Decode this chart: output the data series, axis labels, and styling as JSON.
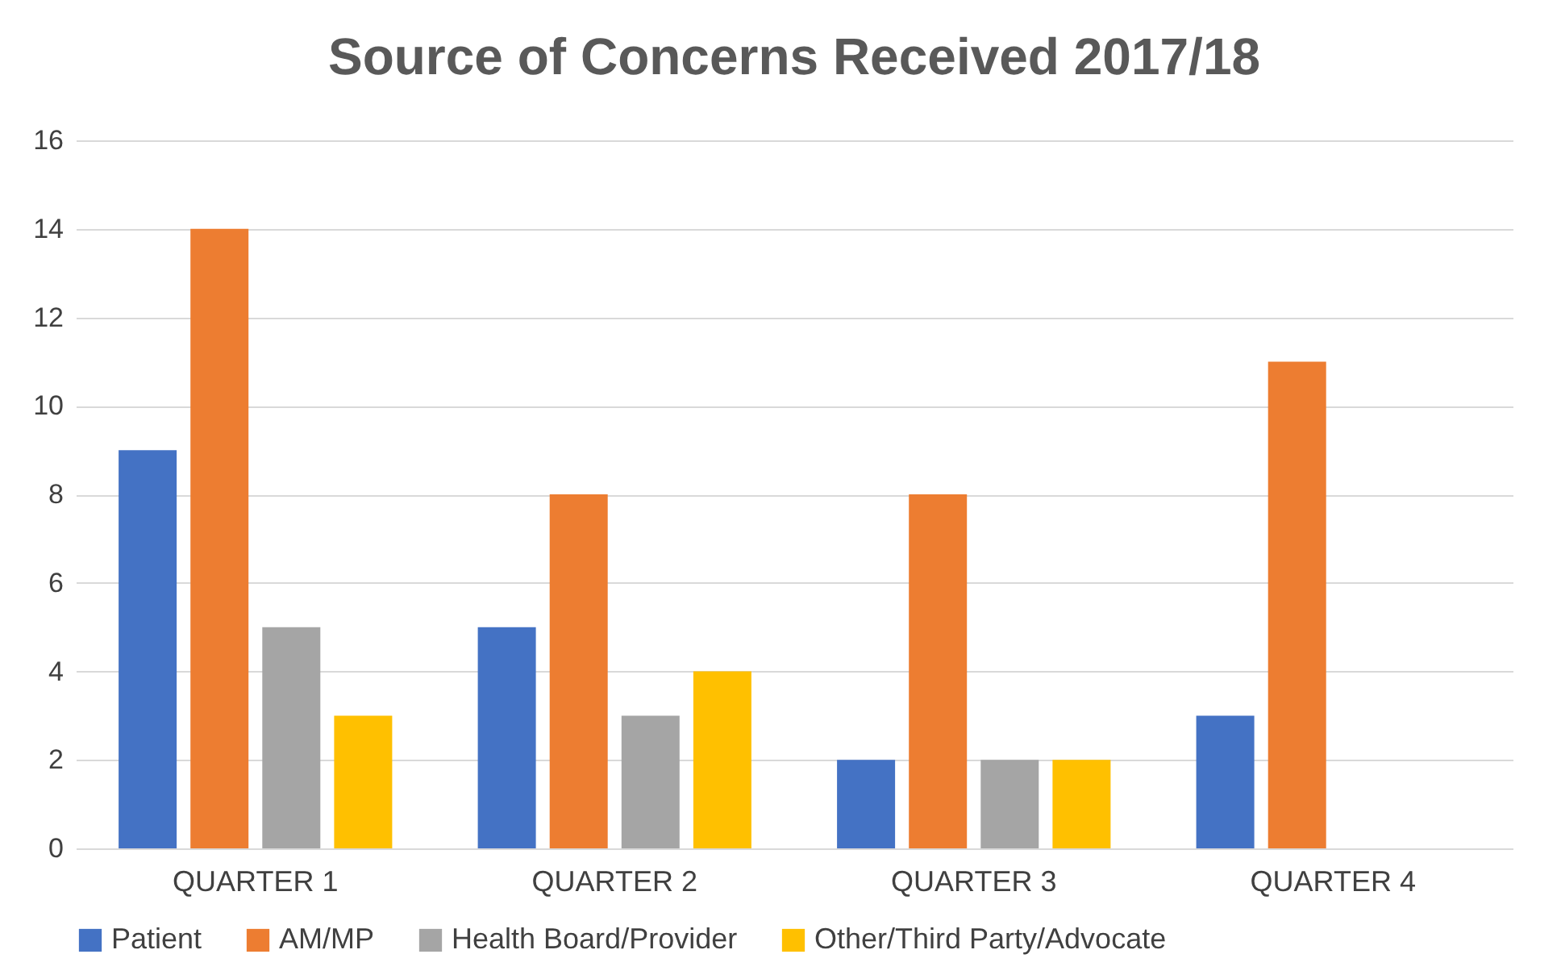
{
  "chart_data": {
    "type": "bar",
    "title": "Source of Concerns Received 2017/18",
    "categories": [
      "QUARTER 1",
      "QUARTER 2",
      "QUARTER 3",
      "QUARTER 4"
    ],
    "series": [
      {
        "name": "Patient",
        "color": "#4472c4",
        "values": [
          9,
          5,
          2,
          3
        ]
      },
      {
        "name": "AM/MP",
        "color": "#ed7d31",
        "values": [
          14,
          8,
          8,
          11
        ]
      },
      {
        "name": "Health Board/Provider",
        "color": "#a5a5a5",
        "values": [
          5,
          3,
          2,
          0
        ]
      },
      {
        "name": "Other/Third Party/Advocate",
        "color": "#ffc000",
        "values": [
          3,
          4,
          2,
          0
        ]
      }
    ],
    "ylim": [
      0,
      16
    ],
    "yticks": [
      0,
      2,
      4,
      6,
      8,
      10,
      12,
      14,
      16
    ],
    "grid": "y",
    "legend": "bottom"
  }
}
